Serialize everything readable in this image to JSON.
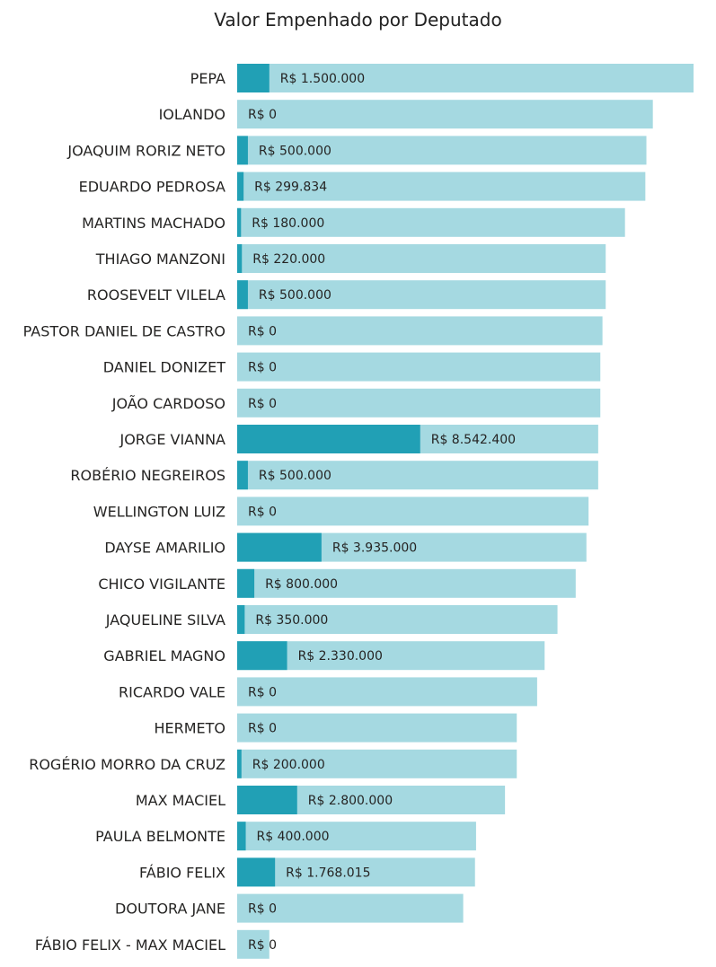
{
  "chart_data": {
    "type": "bar",
    "orientation": "horizontal",
    "title": "Valor Empenhado por Deputado",
    "xlabel": "",
    "ylabel": "",
    "grid": false,
    "currency_prefix": "R$ ",
    "categories": [
      "PEPA",
      "IOLANDO",
      "JOAQUIM RORIZ NETO",
      "EDUARDO PEDROSA",
      "MARTINS MACHADO",
      "THIAGO MANZONI",
      "ROOSEVELT VILELA",
      "PASTOR DANIEL DE CASTRO",
      "DANIEL DONIZET",
      "JOÃO CARDOSO",
      "JORGE VIANNA",
      "ROBÉRIO NEGREIROS",
      "WELLINGTON LUIZ",
      "DAYSE AMARILIO",
      "CHICO VIGILANTE",
      "JAQUELINE SILVA",
      "GABRIEL MAGNO",
      "RICARDO VALE",
      "HERMETO",
      "ROGÉRIO MORRO DA CRUZ",
      "MAX MACIEL",
      "PAULA BELMONTE",
      "FÁBIO FELIX",
      "DOUTORA JANE",
      "FÁBIO FELIX - MAX MACIEL"
    ],
    "series": [
      {
        "name": "",
        "color": "#A5D9E1",
        "values": [
          21300000,
          19400000,
          19100000,
          19050000,
          18100000,
          17200000,
          17200000,
          17050000,
          16950000,
          16950000,
          16850000,
          16850000,
          16400000,
          16300000,
          15800000,
          14950000,
          14350000,
          14000000,
          13050000,
          13050000,
          12500000,
          11150000,
          11100000,
          10550000,
          1500000
        ]
      },
      {
        "name": "Valor Empenhado",
        "color": "#21A0B5",
        "values": [
          1500000,
          0,
          500000,
          299834,
          180000,
          220000,
          500000,
          0,
          0,
          0,
          8542400,
          500000,
          0,
          3935000,
          800000,
          350000,
          2330000,
          0,
          0,
          200000,
          2800000,
          400000,
          1768015,
          0,
          0
        ]
      }
    ],
    "data_labels": [
      "R$ 1.500.000",
      "R$ 0",
      "R$ 500.000",
      "R$ 299.834",
      "R$ 180.000",
      "R$ 220.000",
      "R$ 500.000",
      "R$ 0",
      "R$ 0",
      "R$ 0",
      "R$ 8.542.400",
      "R$ 500.000",
      "R$ 0",
      "R$ 3.935.000",
      "R$ 800.000",
      "R$ 350.000",
      "R$ 2.330.000",
      "R$ 0",
      "R$ 0",
      "R$ 200.000",
      "R$ 2.800.000",
      "R$ 400.000",
      "R$ 1.768.015",
      "R$ 0",
      "R$ 0"
    ],
    "xlim": [
      0,
      21300000
    ]
  }
}
